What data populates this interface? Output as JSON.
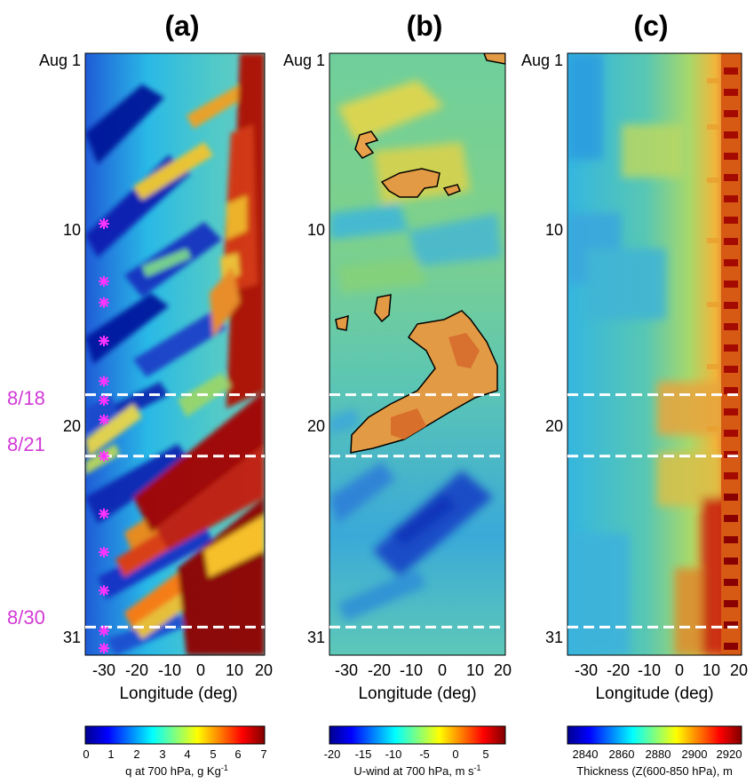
{
  "chart_data": [
    {
      "panel_label": "(a)",
      "type": "heatmap",
      "xlabel": "Longitude (deg)",
      "x_ticks": [
        "-30",
        "-20",
        "-10",
        "0",
        "10",
        "20"
      ],
      "y_ticks": [
        "Aug 1",
        "10",
        "20",
        "31"
      ],
      "colorbar": {
        "label": "q at 700 hPa, g Kg",
        "label_sup": "-1",
        "ticks": [
          "0",
          "1",
          "2",
          "3",
          "4",
          "5",
          "6",
          "7"
        ]
      },
      "reference_lines": [
        {
          "label": "8/18",
          "day": 18.5
        },
        {
          "label": "8/21",
          "day": 21.7
        },
        {
          "label": "8/30",
          "day": 30.6
        }
      ],
      "event_days": [
        9.6,
        12.6,
        13.7,
        15.7,
        17.8,
        18.8,
        19.8,
        21.7,
        24.7,
        26.7,
        28.7,
        30.8,
        31.7
      ]
    },
    {
      "panel_label": "(b)",
      "type": "heatmap",
      "xlabel": "Longitude (deg)",
      "x_ticks": [
        "-30",
        "-20",
        "-10",
        "0",
        "10",
        "20"
      ],
      "y_ticks": [
        "Aug 1",
        "10",
        "20",
        "31"
      ],
      "colorbar": {
        "label": "U-wind at 700 hPa, m s",
        "label_sup": "-1",
        "ticks": [
          "-20",
          "-15",
          "-10",
          "-5",
          "0",
          "5"
        ]
      }
    },
    {
      "panel_label": "(c)",
      "type": "heatmap",
      "xlabel": "Longitude (deg)",
      "x_ticks": [
        "-30",
        "-20",
        "-10",
        "0",
        "10",
        "20"
      ],
      "y_ticks": [
        "Aug 1",
        "10",
        "20",
        "31"
      ],
      "colorbar": {
        "label": "Thickness (Z(600-850 hPa), m",
        "ticks": [
          "2840",
          "2860",
          "2880",
          "2900",
          "2920"
        ]
      }
    }
  ]
}
